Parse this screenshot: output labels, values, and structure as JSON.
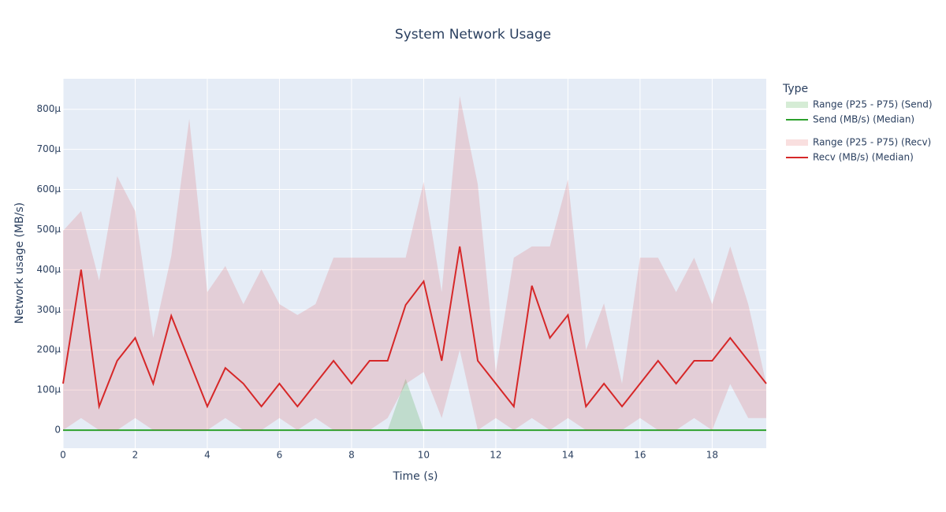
{
  "chart_data": {
    "type": "line",
    "title": "System Network Usage",
    "x_label": "Time (s)",
    "y_label": "Network usage (MB/s)",
    "legend_title": "Type",
    "x": [
      0,
      0.5,
      1,
      1.5,
      2,
      2.5,
      3,
      3.5,
      4,
      4.5,
      5,
      5.5,
      6,
      6.5,
      7,
      7.5,
      8,
      8.5,
      9,
      9.5,
      10,
      10.5,
      11,
      11.5,
      12,
      12.5,
      13,
      13.5,
      14,
      14.5,
      15,
      15.5,
      16,
      16.5,
      17,
      17.5,
      18,
      18.5,
      19,
      19.5
    ],
    "xlim": [
      0,
      19.5
    ],
    "xticks": [
      0,
      2,
      4,
      6,
      8,
      10,
      12,
      14,
      16,
      18
    ],
    "ylim": [
      -4.5e-05,
      0.000876
    ],
    "yticks": [
      0,
      {
        "value": 0.0001,
        "label": "100μ"
      },
      {
        "value": 0.0002,
        "label": "200μ"
      },
      {
        "value": 0.0003,
        "label": "300μ"
      },
      {
        "value": 0.0004,
        "label": "400μ"
      },
      {
        "value": 0.0005,
        "label": "500μ"
      },
      {
        "value": 0.0006,
        "label": "600μ"
      },
      {
        "value": 0.0007,
        "label": "700μ"
      },
      {
        "value": 0.0008,
        "label": "800μ"
      }
    ],
    "grid": true,
    "legend": "right",
    "series": [
      {
        "name": "Range (P25 - P75) (Send)",
        "kind": "band",
        "color": "rgba(44,160,44,0.2)",
        "low": [
          0,
          0,
          0,
          0,
          0,
          0,
          0,
          0,
          0,
          0,
          0,
          0,
          0,
          0,
          0,
          0,
          0,
          0,
          0,
          0,
          0,
          0,
          0,
          0,
          0,
          0,
          0,
          0,
          0,
          0,
          0,
          0,
          0,
          0,
          0,
          0,
          0,
          0,
          0,
          0
        ],
        "high": [
          0,
          0,
          0,
          0,
          0,
          0,
          0,
          0,
          0,
          0,
          0,
          0,
          0,
          0,
          0,
          0,
          0,
          0,
          0,
          0.000128,
          0,
          0,
          0,
          0,
          0,
          0,
          0,
          0,
          0,
          0,
          0,
          0,
          0,
          0,
          0,
          0,
          0,
          0,
          0,
          0
        ]
      },
      {
        "name": "Send (MB/s) (Median)",
        "kind": "line",
        "color": "#2ca02c",
        "values": [
          0,
          0,
          0,
          0,
          0,
          0,
          0,
          0,
          0,
          0,
          0,
          0,
          0,
          0,
          0,
          0,
          0,
          0,
          0,
          0,
          0,
          0,
          0,
          0,
          0,
          0,
          0,
          0,
          0,
          0,
          0,
          0,
          0,
          0,
          0,
          0,
          0,
          0,
          0,
          0
        ]
      },
      {
        "name": "Range (P25 - P75) (Recv)",
        "kind": "band",
        "color": "rgba(214,39,40,0.15)",
        "low": [
          0,
          3e-05,
          0,
          0,
          3e-05,
          0,
          0,
          0,
          0,
          3e-05,
          0,
          0,
          3e-05,
          0,
          3e-05,
          0,
          0,
          0,
          3e-05,
          0.000115,
          0.000145,
          3e-05,
          0.0002,
          0,
          3e-05,
          0,
          3e-05,
          0,
          3e-05,
          0,
          0,
          0,
          3e-05,
          0,
          0,
          3e-05,
          0,
          0.000115,
          3e-05,
          3e-05
        ],
        "high": [
          0.000497,
          0.000546,
          0.000373,
          0.000633,
          0.000546,
          0.00023,
          0.000434,
          0.000776,
          0.000344,
          0.000409,
          0.000314,
          0.000401,
          0.000314,
          0.000287,
          0.000314,
          0.00043,
          0.00043,
          0.00043,
          0.00043,
          0.00043,
          0.000619,
          0.000344,
          0.000833,
          0.000613,
          0.000145,
          0.00043,
          0.000458,
          0.000458,
          0.000625,
          0.0002,
          0.000316,
          0.000116,
          0.00043,
          0.00043,
          0.000344,
          0.00043,
          0.000314,
          0.000458,
          0.000314,
          0.000116
        ]
      },
      {
        "name": "Recv (MB/s) (Median)",
        "kind": "line",
        "color": "#d62728",
        "values": [
          0.000116,
          0.0004,
          5.9e-05,
          0.000173,
          0.00023,
          0.000116,
          0.000285,
          0.000172,
          5.9e-05,
          0.000155,
          0.000116,
          5.9e-05,
          0.000116,
          5.9e-05,
          0.000116,
          0.000173,
          0.000116,
          0.000173,
          0.000173,
          0.000312,
          0.000371,
          0.000173,
          0.000458,
          0.000173,
          0.000116,
          5.9e-05,
          0.00036,
          0.00023,
          0.000287,
          5.9e-05,
          0.000116,
          5.9e-05,
          0.000116,
          0.000173,
          0.000116,
          0.000173,
          0.000173,
          0.00023,
          0.000173,
          0.000116
        ]
      }
    ]
  }
}
